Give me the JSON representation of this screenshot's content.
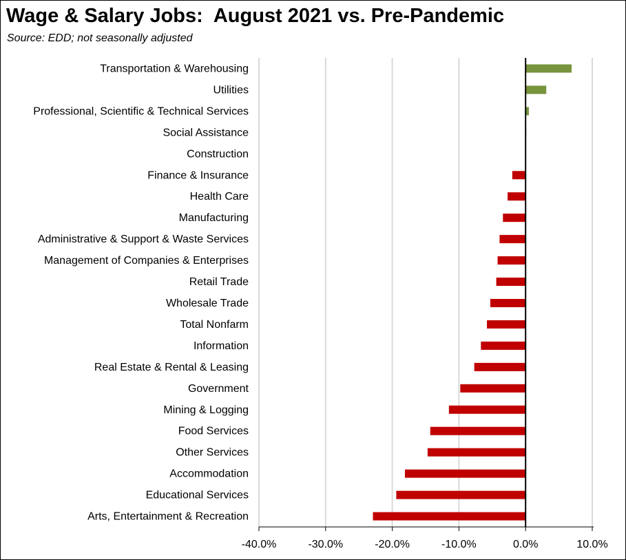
{
  "chart_data": {
    "type": "bar",
    "orientation": "horizontal",
    "title": "Wage & Salary Jobs:  August 2021 vs. Pre-Pandemic",
    "subtitle": "Source:  EDD; not seasonally adjusted",
    "xlabel": "",
    "ylabel": "",
    "xlim": [
      -40,
      10
    ],
    "xticks": [
      -40,
      -30,
      -20,
      -10,
      0,
      10
    ],
    "xtick_labels": [
      "-40.0%",
      "-30.0%",
      "-20.0%",
      "-10.0%",
      "0.0%",
      "10.0%"
    ],
    "grid": true,
    "legend": "none",
    "categories": [
      "Transportation & Warehousing",
      "Utilities",
      "Professional, Scientific & Technical Services",
      "Social Assistance",
      "Construction",
      "Finance & Insurance",
      "Health Care",
      "Manufacturing",
      "Administrative & Support & Waste Services",
      "Management of Companies & Enterprises",
      "Retail Trade",
      "Wholesale Trade",
      "Total Nonfarm",
      "Information",
      "Real Estate & Rental & Leasing",
      "Government",
      "Mining & Logging",
      "Food Services",
      "Other Services",
      "Accommodation",
      "Educational Services",
      "Arts, Entertainment & Recreation"
    ],
    "values": [
      6.9,
      3.1,
      0.5,
      0.1,
      0.0,
      -2.0,
      -2.7,
      -3.4,
      -3.9,
      -4.2,
      -4.4,
      -5.3,
      -5.8,
      -6.7,
      -7.7,
      -9.8,
      -11.5,
      -14.3,
      -14.7,
      -18.1,
      -19.4,
      -22.9
    ],
    "colors": {
      "positive": "#77933C",
      "negative": "#C00000",
      "grid": "#D9D9D9",
      "axis": "#000000"
    }
  }
}
